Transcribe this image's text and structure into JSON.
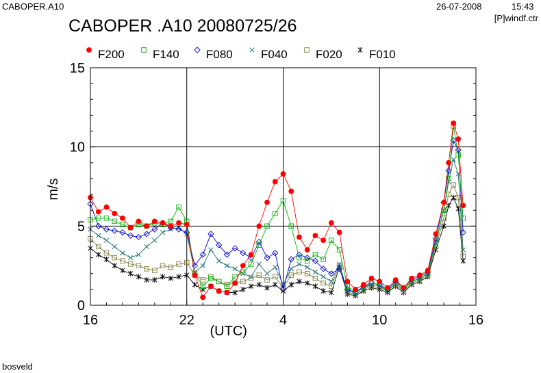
{
  "header": {
    "file_name": "CABOPER.A10",
    "date": "26-07-2008",
    "time": "15:43",
    "source": "[P]windf.ctr"
  },
  "footer": {
    "station": "bosveld"
  },
  "chart_data": {
    "type": "line",
    "title": "CABOPER .A10 20080725/26",
    "xlabel": "(UTC)",
    "ylabel": "m/s",
    "x_unit": "hours since 16 UTC",
    "xlim": [
      0,
      24
    ],
    "ylim": [
      0,
      15
    ],
    "x_ticks": [
      {
        "x": 0,
        "label": "16"
      },
      {
        "x": 6,
        "label": "22"
      },
      {
        "x": 12,
        "label": "4"
      },
      {
        "x": 18,
        "label": "10"
      },
      {
        "x": 24,
        "label": "16"
      }
    ],
    "y_ticks": [
      {
        "y": 0,
        "label": "0"
      },
      {
        "y": 5,
        "label": "5"
      },
      {
        "y": 10,
        "label": "10"
      },
      {
        "y": 15,
        "label": "15"
      }
    ],
    "grid": true,
    "legend_position": "top",
    "series": [
      {
        "name": "F200",
        "color": "#ff0000",
        "marker": "filled-circle",
        "x": [
          0,
          0.5,
          1,
          1.5,
          2,
          2.5,
          3,
          3.5,
          4,
          4.5,
          5,
          5.5,
          6,
          6.5,
          7,
          7.5,
          8,
          8.5,
          9,
          9.5,
          10,
          10.5,
          11,
          11.5,
          12,
          12.5,
          13,
          13.5,
          14,
          14.5,
          15,
          15.5,
          16,
          16.5,
          17,
          17.5,
          18,
          18.5,
          19,
          19.5,
          20,
          20.5,
          21,
          21.5,
          22,
          22.3,
          22.6,
          22.9,
          23.2
        ],
        "values": [
          6.8,
          5.9,
          6.2,
          5.8,
          5.5,
          4.9,
          5.3,
          5.0,
          5.3,
          5.2,
          5.0,
          5.2,
          5.1,
          1.9,
          0.5,
          1.2,
          0.9,
          0.8,
          1.4,
          2.5,
          3.2,
          5.0,
          6.5,
          7.8,
          8.3,
          7.2,
          4.3,
          3.5,
          4.4,
          4.1,
          5.2,
          4.6,
          1.5,
          1.0,
          1.3,
          1.7,
          1.5,
          1.1,
          1.6,
          1.1,
          1.7,
          1.9,
          2.2,
          4.5,
          6.5,
          9.0,
          11.5,
          10.5,
          6.3
        ]
      },
      {
        "name": "F140",
        "color": "#00b000",
        "marker": "open-square",
        "x": [
          0,
          0.5,
          1,
          1.5,
          2,
          2.5,
          3,
          3.5,
          4,
          4.5,
          5,
          5.5,
          6,
          6.5,
          7,
          7.5,
          8,
          8.5,
          9,
          9.5,
          10,
          10.5,
          11,
          11.5,
          12,
          12.5,
          13,
          13.5,
          14,
          14.5,
          15,
          15.5,
          16,
          16.5,
          17,
          17.5,
          18,
          18.5,
          19,
          19.5,
          20,
          20.5,
          21,
          21.5,
          22,
          22.3,
          22.6,
          22.9,
          23.2
        ],
        "values": [
          5.4,
          5.5,
          5.5,
          5.3,
          5.1,
          4.9,
          5.1,
          5.0,
          5.2,
          5.1,
          5.3,
          6.2,
          5.3,
          2.0,
          1.2,
          1.7,
          1.5,
          1.2,
          1.8,
          2.1,
          2.6,
          3.8,
          5.0,
          5.8,
          6.6,
          5.0,
          3.0,
          2.8,
          3.2,
          2.9,
          4.1,
          3.5,
          1.2,
          0.8,
          1.1,
          1.4,
          1.3,
          0.9,
          1.4,
          1.0,
          1.5,
          1.7,
          2.0,
          4.0,
          6.0,
          8.0,
          11.3,
          9.5,
          5.5
        ]
      },
      {
        "name": "F080",
        "color": "#0000d0",
        "marker": "open-diamond",
        "x": [
          0,
          0.5,
          1,
          1.5,
          2,
          2.5,
          3,
          3.5,
          4,
          4.5,
          5,
          5.5,
          6,
          6.5,
          7,
          7.5,
          8,
          8.5,
          9,
          9.5,
          10,
          10.5,
          11,
          11.5,
          12,
          12.5,
          13,
          13.5,
          14,
          14.5,
          15,
          15.5,
          16,
          16.5,
          17,
          17.5,
          18,
          18.5,
          19,
          19.5,
          20,
          20.5,
          21,
          21.5,
          22,
          22.3,
          22.6,
          22.9,
          23.2
        ],
        "values": [
          6.4,
          5.0,
          4.8,
          4.7,
          4.6,
          4.4,
          4.3,
          4.5,
          4.8,
          5.2,
          4.9,
          4.8,
          4.6,
          2.5,
          3.2,
          4.5,
          3.8,
          3.2,
          3.6,
          3.3,
          3.0,
          4.0,
          3.0,
          3.3,
          1.0,
          2.9,
          3.2,
          3.0,
          2.8,
          2.3,
          2.0,
          2.3,
          1.0,
          0.8,
          1.2,
          1.4,
          1.3,
          1.0,
          1.5,
          1.1,
          1.6,
          1.8,
          2.1,
          4.2,
          6.5,
          8.5,
          10.4,
          9.8,
          4.6
        ]
      },
      {
        "name": "F040",
        "color": "#207070",
        "marker": "cross",
        "x": [
          0,
          0.5,
          1,
          1.5,
          2,
          2.5,
          3,
          3.5,
          4,
          4.5,
          5,
          5.5,
          6,
          6.5,
          7,
          7.5,
          8,
          8.5,
          9,
          9.5,
          10,
          10.5,
          11,
          11.5,
          12,
          12.5,
          13,
          13.5,
          14,
          14.5,
          15,
          15.5,
          16,
          16.5,
          17,
          17.5,
          18,
          18.5,
          19,
          19.5,
          20,
          20.5,
          21,
          21.5,
          22,
          22.3,
          22.6,
          22.9,
          23.2
        ],
        "values": [
          4.8,
          4.4,
          4.1,
          3.7,
          3.3,
          3.0,
          3.2,
          3.7,
          4.1,
          4.6,
          4.8,
          4.9,
          4.5,
          2.1,
          2.5,
          3.5,
          2.8,
          2.5,
          2.3,
          2.0,
          1.8,
          2.6,
          2.0,
          2.4,
          1.3,
          2.3,
          2.6,
          2.4,
          2.1,
          1.8,
          1.5,
          2.6,
          0.9,
          0.8,
          1.1,
          1.3,
          1.2,
          0.9,
          1.4,
          1.0,
          1.5,
          1.7,
          2.0,
          3.9,
          6.0,
          7.8,
          9.2,
          8.3,
          3.5
        ]
      },
      {
        "name": "F020",
        "color": "#808040",
        "marker": "open-square",
        "x": [
          0,
          0.5,
          1,
          1.5,
          2,
          2.5,
          3,
          3.5,
          4,
          4.5,
          5,
          5.5,
          6,
          6.5,
          7,
          7.5,
          8,
          8.5,
          9,
          9.5,
          10,
          10.5,
          11,
          11.5,
          12,
          12.5,
          13,
          13.5,
          14,
          14.5,
          15,
          15.5,
          16,
          16.5,
          17,
          17.5,
          18,
          18.5,
          19,
          19.5,
          20,
          20.5,
          21,
          21.5,
          22,
          22.3,
          22.6,
          22.9,
          23.2
        ],
        "values": [
          4.2,
          3.7,
          3.3,
          3.0,
          2.8,
          2.6,
          2.5,
          2.3,
          2.2,
          2.5,
          2.4,
          2.6,
          2.7,
          1.9,
          1.6,
          1.8,
          1.5,
          1.3,
          1.4,
          1.5,
          1.7,
          1.9,
          1.6,
          1.8,
          1.1,
          1.9,
          2.1,
          2.0,
          1.7,
          1.4,
          1.2,
          2.5,
          0.8,
          0.7,
          1.0,
          1.2,
          1.1,
          0.9,
          1.3,
          0.9,
          1.4,
          1.6,
          1.9,
          3.7,
          5.5,
          7.0,
          7.6,
          6.8,
          3.1
        ]
      },
      {
        "name": "F010",
        "color": "#000000",
        "marker": "asterisk",
        "x": [
          0,
          0.5,
          1,
          1.5,
          2,
          2.5,
          3,
          3.5,
          4,
          4.5,
          5,
          5.5,
          6,
          6.5,
          7,
          7.5,
          8,
          8.5,
          9,
          9.5,
          10,
          10.5,
          11,
          11.5,
          12,
          12.5,
          13,
          13.5,
          14,
          14.5,
          15,
          15.5,
          16,
          16.5,
          17,
          17.5,
          18,
          18.5,
          19,
          19.5,
          20,
          20.5,
          21,
          21.5,
          22,
          22.3,
          22.6,
          22.9,
          23.2
        ],
        "values": [
          3.6,
          3.2,
          2.9,
          2.5,
          2.2,
          2.0,
          1.8,
          1.6,
          1.6,
          1.8,
          1.7,
          1.8,
          1.9,
          1.3,
          1.0,
          1.2,
          0.9,
          0.8,
          0.8,
          1.0,
          1.2,
          1.3,
          1.1,
          1.3,
          0.9,
          1.3,
          1.5,
          1.4,
          1.2,
          0.9,
          0.8,
          2.4,
          0.7,
          0.6,
          0.9,
          1.1,
          1.0,
          0.8,
          1.2,
          0.8,
          1.3,
          1.5,
          1.8,
          3.5,
          5.0,
          6.3,
          6.8,
          6.1,
          2.8
        ]
      }
    ]
  }
}
